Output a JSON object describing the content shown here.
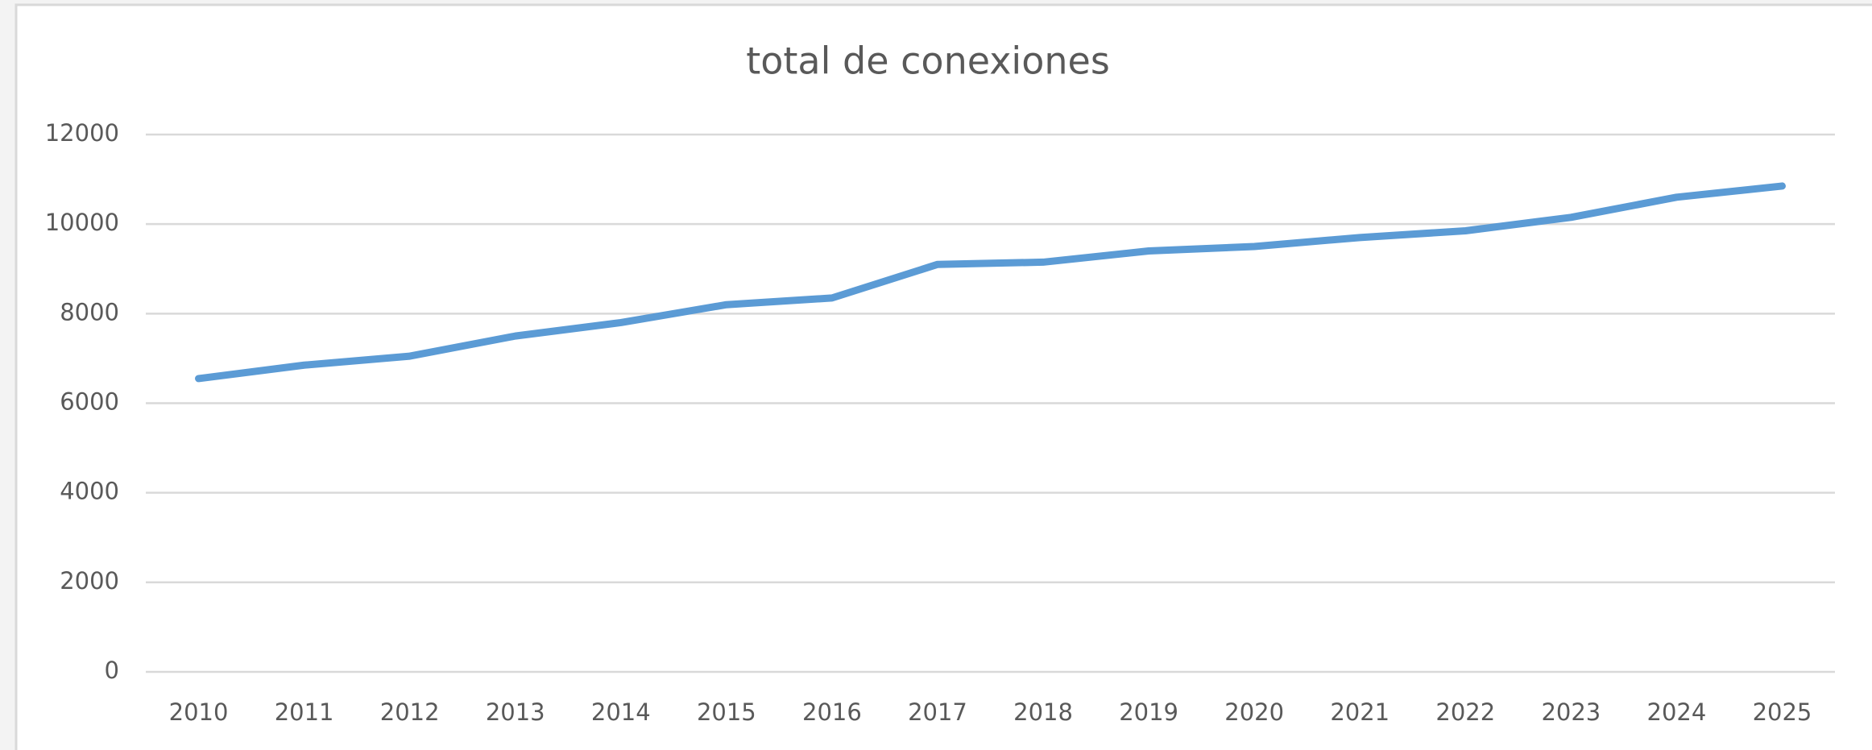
{
  "chart_data": {
    "type": "line",
    "title": "total de conexiones",
    "categories": [
      "2010",
      "2011",
      "2012",
      "2013",
      "2014",
      "2015",
      "2016",
      "2017",
      "2018",
      "2019",
      "2020",
      "2021",
      "2022",
      "2023",
      "2024",
      "2025"
    ],
    "series": [
      {
        "name": "total de conexiones",
        "color": "#5b9bd5",
        "values": [
          6550,
          6850,
          7050,
          7500,
          7800,
          8200,
          8350,
          9100,
          9150,
          9400,
          9500,
          9700,
          9850,
          10150,
          10600,
          10850
        ]
      }
    ],
    "ylim": [
      0,
      12000
    ],
    "yticks": [
      0,
      2000,
      4000,
      6000,
      8000,
      10000,
      12000
    ],
    "grid": true
  }
}
